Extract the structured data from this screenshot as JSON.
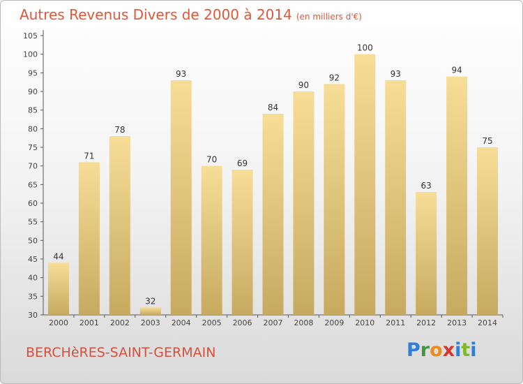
{
  "title": "Autres Revenus Divers de 2000 à 2014",
  "subtitle": "(en milliers d'€)",
  "location": "BERCHèRES-SAINT-GERMAIN",
  "logo": {
    "text": "Proxiti"
  },
  "colors": {
    "bar_top": "#f7dd96",
    "bar_bottom": "#c6aa60",
    "title": "#e0573a",
    "axis": "#444444"
  },
  "chart_data": {
    "type": "bar",
    "categories": [
      "2000",
      "2001",
      "2002",
      "2003",
      "2004",
      "2005",
      "2006",
      "2007",
      "2008",
      "2009",
      "2010",
      "2011",
      "2012",
      "2013",
      "2014"
    ],
    "values": [
      44,
      71,
      78,
      32,
      93,
      70,
      69,
      84,
      90,
      92,
      100,
      93,
      63,
      94,
      75
    ],
    "ylim": [
      30,
      105
    ],
    "yticks": [
      30,
      35,
      40,
      45,
      50,
      55,
      60,
      65,
      70,
      75,
      80,
      85,
      90,
      95,
      100,
      105
    ],
    "grid": false,
    "data_labels": true
  }
}
